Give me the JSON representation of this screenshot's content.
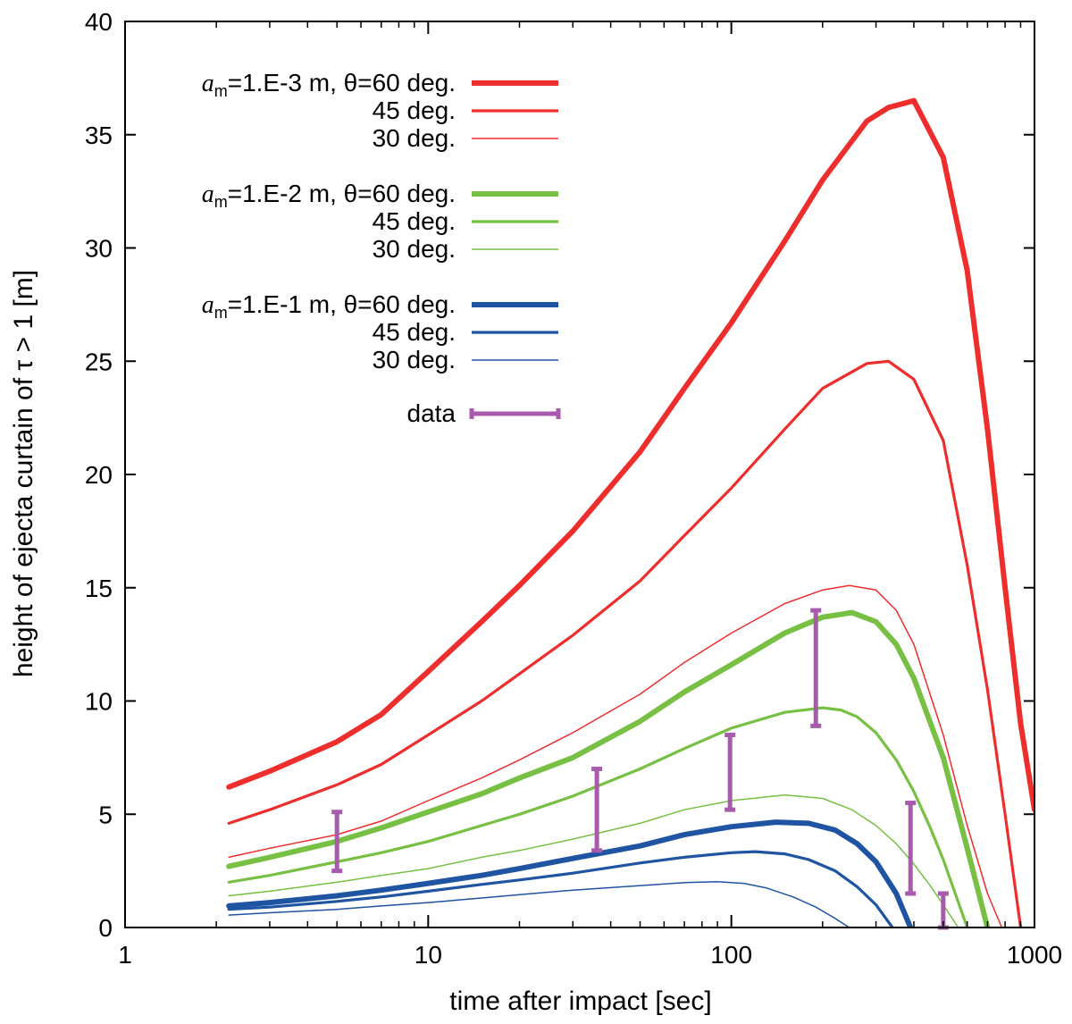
{
  "chart_data": {
    "type": "line",
    "xscale": "log",
    "xlim": [
      1,
      1000
    ],
    "ylim": [
      0,
      40
    ],
    "xlabel": "time after impact [sec]",
    "ylabel": "height of ejecta curtain of τ > 1 [m]",
    "xticks": [
      1,
      10,
      100,
      1000
    ],
    "xtick_labels": [
      "1",
      "10",
      "100",
      "1000"
    ],
    "yticks": [
      0,
      5,
      10,
      15,
      20,
      25,
      30,
      35,
      40
    ],
    "ytick_labels": [
      "0",
      "5",
      "10",
      "15",
      "20",
      "25",
      "30",
      "35",
      "40"
    ],
    "legend_position": "top-left",
    "colors": {
      "red": "#ee2d2d",
      "green": "#77c043",
      "blue": "#1f54a3",
      "data": "#a85aac"
    },
    "series": [
      {
        "name": "am=1.E-3 m, θ=60 deg.",
        "group": "red",
        "weight": "thick",
        "x": [
          2.2,
          3,
          5,
          7,
          10,
          15,
          20,
          30,
          50,
          70,
          100,
          150,
          200,
          280,
          330,
          400,
          500,
          600,
          700,
          800,
          900,
          1000
        ],
        "y": [
          6.2,
          6.9,
          8.2,
          9.4,
          11.3,
          13.5,
          15.1,
          17.5,
          21.0,
          23.8,
          26.7,
          30.3,
          33.0,
          35.6,
          36.2,
          36.5,
          34.0,
          29.0,
          22.0,
          15.0,
          9.0,
          5.2
        ]
      },
      {
        "name": "45 deg.",
        "group": "red",
        "weight": "medium",
        "x": [
          2.2,
          3,
          5,
          7,
          10,
          15,
          20,
          30,
          50,
          70,
          100,
          150,
          200,
          280,
          330,
          400,
          500,
          600,
          700,
          800,
          900
        ],
        "y": [
          4.6,
          5.2,
          6.3,
          7.2,
          8.5,
          10.0,
          11.2,
          12.9,
          15.3,
          17.3,
          19.4,
          22.0,
          23.8,
          24.9,
          25.0,
          24.2,
          21.5,
          16.0,
          10.5,
          5.0,
          0.0
        ]
      },
      {
        "name": "30 deg.",
        "group": "red",
        "weight": "thin",
        "x": [
          2.2,
          3,
          5,
          7,
          10,
          15,
          20,
          30,
          50,
          70,
          100,
          150,
          200,
          245,
          300,
          350,
          400,
          500,
          600,
          700,
          780
        ],
        "y": [
          3.1,
          3.5,
          4.1,
          4.7,
          5.6,
          6.6,
          7.4,
          8.6,
          10.3,
          11.7,
          13.0,
          14.3,
          14.9,
          15.1,
          14.9,
          14.0,
          12.5,
          8.5,
          4.5,
          1.5,
          0.0
        ]
      },
      {
        "name": "am=1.E-2 m, θ=60 deg.",
        "group": "green",
        "weight": "thick",
        "x": [
          2.2,
          3,
          5,
          7,
          10,
          15,
          20,
          30,
          50,
          70,
          100,
          150,
          200,
          250,
          300,
          350,
          400,
          500,
          600,
          700
        ],
        "y": [
          2.7,
          3.1,
          3.8,
          4.4,
          5.1,
          5.9,
          6.6,
          7.5,
          9.1,
          10.4,
          11.6,
          13.0,
          13.7,
          13.9,
          13.5,
          12.5,
          11.0,
          7.5,
          3.5,
          0.0
        ]
      },
      {
        "name": "45 deg.",
        "group": "green",
        "weight": "medium",
        "x": [
          2.2,
          3,
          5,
          7,
          10,
          15,
          20,
          30,
          50,
          70,
          100,
          150,
          200,
          230,
          260,
          300,
          350,
          400,
          450,
          500,
          600
        ],
        "y": [
          2.0,
          2.3,
          2.9,
          3.3,
          3.8,
          4.5,
          5.0,
          5.8,
          7.0,
          7.9,
          8.8,
          9.5,
          9.7,
          9.6,
          9.3,
          8.6,
          7.4,
          6.0,
          4.5,
          3.0,
          0.0
        ]
      },
      {
        "name": "30 deg.",
        "group": "green",
        "weight": "thin",
        "x": [
          2.2,
          3,
          5,
          7,
          10,
          15,
          20,
          30,
          50,
          70,
          100,
          150,
          200,
          250,
          300,
          350,
          400,
          450,
          500,
          560
        ],
        "y": [
          1.4,
          1.6,
          2.0,
          2.3,
          2.6,
          3.1,
          3.4,
          3.9,
          4.6,
          5.2,
          5.6,
          5.85,
          5.7,
          5.2,
          4.5,
          3.7,
          2.8,
          1.9,
          1.0,
          0.0
        ]
      },
      {
        "name": "am=1.E-1 m, θ=60 deg.",
        "group": "blue",
        "weight": "thick",
        "x": [
          2.2,
          3,
          5,
          7,
          10,
          15,
          20,
          30,
          50,
          70,
          100,
          140,
          180,
          220,
          260,
          300,
          350,
          390
        ],
        "y": [
          0.95,
          1.1,
          1.4,
          1.65,
          1.95,
          2.3,
          2.6,
          3.05,
          3.6,
          4.1,
          4.45,
          4.65,
          4.6,
          4.3,
          3.7,
          2.9,
          1.5,
          0.0
        ]
      },
      {
        "name": "45 deg.",
        "group": "blue",
        "weight": "medium",
        "x": [
          2.2,
          3,
          5,
          7,
          10,
          15,
          20,
          30,
          50,
          70,
          100,
          120,
          150,
          180,
          220,
          260,
          300,
          340
        ],
        "y": [
          0.8,
          0.9,
          1.15,
          1.35,
          1.6,
          1.9,
          2.1,
          2.4,
          2.85,
          3.1,
          3.3,
          3.35,
          3.25,
          3.0,
          2.5,
          1.8,
          1.0,
          0.0
        ]
      },
      {
        "name": "30 deg.",
        "group": "blue",
        "weight": "thin",
        "x": [
          2.2,
          3,
          5,
          7,
          10,
          15,
          20,
          30,
          50,
          70,
          90,
          110,
          130,
          160,
          190,
          220,
          245
        ],
        "y": [
          0.55,
          0.65,
          0.8,
          0.95,
          1.1,
          1.3,
          1.45,
          1.65,
          1.85,
          1.98,
          2.02,
          1.95,
          1.75,
          1.35,
          0.9,
          0.4,
          0.0
        ]
      }
    ],
    "data_points": [
      {
        "x": 5,
        "ymin": 2.5,
        "ymax": 5.1
      },
      {
        "x": 36,
        "ymin": 3.4,
        "ymax": 7.0
      },
      {
        "x": 99,
        "ymin": 5.2,
        "ymax": 8.5
      },
      {
        "x": 190,
        "ymin": 8.9,
        "ymax": 14.0
      },
      {
        "x": 390,
        "ymin": 1.5,
        "ymax": 5.5
      },
      {
        "x": 500,
        "ymin": 0.0,
        "ymax": 1.5
      }
    ],
    "legend": {
      "groups": [
        {
          "group": "red",
          "sym": "a",
          "sub": "m",
          "rest": "=1.E-3 m, θ=60 deg.",
          "subs": [
            "45 deg.",
            "30 deg."
          ]
        },
        {
          "group": "green",
          "sym": "a",
          "sub": "m",
          "rest": "=1.E-2 m, θ=60 deg.",
          "subs": [
            "45 deg.",
            "30 deg."
          ]
        },
        {
          "group": "blue",
          "sym": "a",
          "sub": "m",
          "rest": "=1.E-1 m, θ=60 deg.",
          "subs": [
            "45 deg.",
            "30 deg."
          ]
        }
      ],
      "data_label": "data"
    }
  }
}
